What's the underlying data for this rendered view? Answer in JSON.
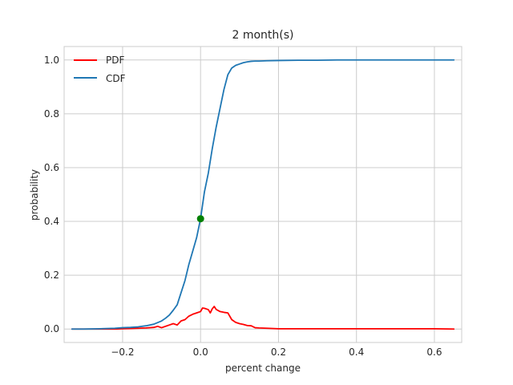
{
  "chart_data": {
    "type": "line",
    "title": "2 month(s)",
    "xlabel": "percent change",
    "ylabel": "probability",
    "xlim": [
      -0.35,
      0.67
    ],
    "ylim": [
      -0.05,
      1.05
    ],
    "xticks": [
      -0.2,
      0.0,
      0.2,
      0.4,
      0.6
    ],
    "xtick_labels": [
      "−0.2",
      "0.0",
      "0.2",
      "0.4",
      "0.6"
    ],
    "yticks": [
      0.0,
      0.2,
      0.4,
      0.6,
      0.8,
      1.0
    ],
    "ytick_labels": [
      "0.0",
      "0.2",
      "0.4",
      "0.6",
      "0.8",
      "1.0"
    ],
    "grid": true,
    "legend_position": "top-left",
    "series": [
      {
        "name": "PDF",
        "color": "#ff0000",
        "x": [
          -0.33,
          -0.3,
          -0.26,
          -0.22,
          -0.2,
          -0.18,
          -0.16,
          -0.14,
          -0.12,
          -0.11,
          -0.1,
          -0.09,
          -0.08,
          -0.07,
          -0.06,
          -0.05,
          -0.04,
          -0.03,
          -0.02,
          -0.01,
          0.0,
          0.005,
          0.01,
          0.02,
          0.025,
          0.03,
          0.035,
          0.04,
          0.05,
          0.06,
          0.07,
          0.08,
          0.09,
          0.1,
          0.11,
          0.12,
          0.13,
          0.14,
          0.15,
          0.17,
          0.2,
          0.25,
          0.3,
          0.35,
          0.4,
          0.45,
          0.5,
          0.55,
          0.6,
          0.65
        ],
        "y": [
          0.0,
          0.0,
          0.0,
          0.0,
          0.001,
          0.002,
          0.003,
          0.004,
          0.006,
          0.01,
          0.005,
          0.01,
          0.015,
          0.02,
          0.015,
          0.03,
          0.035,
          0.048,
          0.055,
          0.06,
          0.065,
          0.078,
          0.077,
          0.072,
          0.06,
          0.075,
          0.084,
          0.073,
          0.065,
          0.062,
          0.06,
          0.035,
          0.025,
          0.02,
          0.017,
          0.013,
          0.012,
          0.005,
          0.004,
          0.003,
          0.001,
          0.001,
          0.001,
          0.001,
          0.001,
          0.001,
          0.001,
          0.001,
          0.001,
          0.0
        ]
      },
      {
        "name": "CDF",
        "color": "#1f77b4",
        "x": [
          -0.33,
          -0.3,
          -0.26,
          -0.22,
          -0.2,
          -0.18,
          -0.16,
          -0.14,
          -0.12,
          -0.11,
          -0.1,
          -0.09,
          -0.08,
          -0.07,
          -0.06,
          -0.05,
          -0.04,
          -0.03,
          -0.02,
          -0.01,
          0.0,
          0.01,
          0.02,
          0.03,
          0.04,
          0.05,
          0.06,
          0.07,
          0.08,
          0.09,
          0.1,
          0.11,
          0.12,
          0.13,
          0.14,
          0.15,
          0.17,
          0.2,
          0.25,
          0.3,
          0.35,
          0.4,
          0.45,
          0.5,
          0.55,
          0.6,
          0.65
        ],
        "y": [
          0.0,
          0.0,
          0.001,
          0.003,
          0.005,
          0.006,
          0.008,
          0.012,
          0.018,
          0.024,
          0.03,
          0.04,
          0.052,
          0.07,
          0.09,
          0.135,
          0.18,
          0.24,
          0.29,
          0.34,
          0.41,
          0.51,
          0.58,
          0.67,
          0.75,
          0.82,
          0.89,
          0.945,
          0.97,
          0.98,
          0.985,
          0.99,
          0.993,
          0.995,
          0.996,
          0.996,
          0.997,
          0.998,
          0.999,
          0.999,
          1.0,
          1.0,
          1.0,
          1.0,
          1.0,
          1.0,
          1.0
        ]
      }
    ],
    "marker": {
      "x": 0.0,
      "y": 0.41,
      "color": "#008000"
    }
  }
}
